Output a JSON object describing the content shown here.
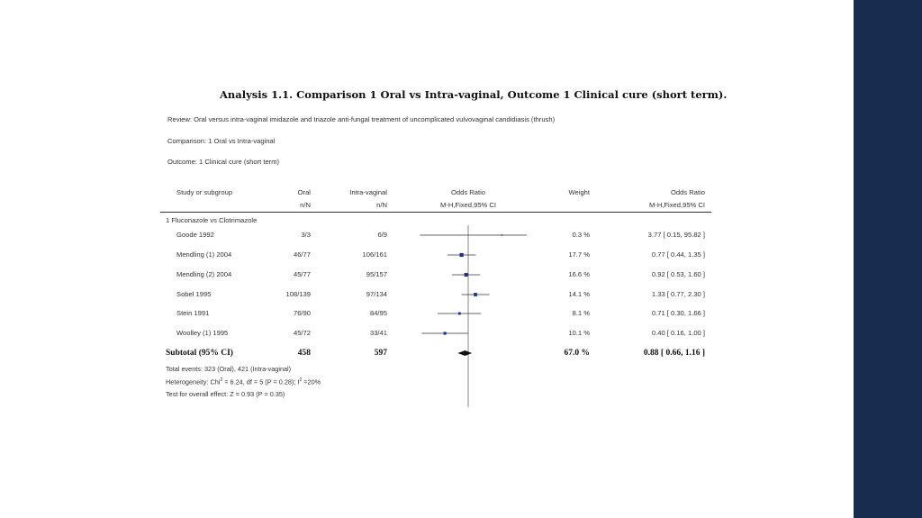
{
  "title": "Analysis 1.1.   Comparison 1 Oral vs Intra-vaginal, Outcome 1 Clinical cure (short term).",
  "review": "Review:   Oral versus intra-vaginal imidazole and triazole anti-fungal treatment of uncomplicated vulvovaginal candidiasis (thrush)",
  "comparison": "Comparison:   1 Oral vs Intra-vaginal",
  "outcome": "Outcome:   1 Clinical cure (short term)",
  "headers": {
    "study": "Study or subgroup",
    "oral": "Oral",
    "oral_sub": "n/N",
    "iv": "Intra-vaginal",
    "iv_sub": "n/N",
    "or_plot": "Odds Ratio",
    "or_plot_sub": "M-H,Fixed,95% CI",
    "weight": "Weight",
    "or_text": "Odds Ratio",
    "or_text_sub": "M-H,Fixed,95% CI"
  },
  "subgroup_label": "1 Fluconazole vs Clotrimazole",
  "chart_data": {
    "type": "forest",
    "null_value": 1,
    "scale": "log",
    "xlim": [
      0.1,
      10
    ],
    "studies": [
      {
        "name": "Goode 1992",
        "oral": "3/3",
        "iv": "6/9",
        "weight": "0.3 %",
        "ci_text": "3.77 [ 0.15, 95.82 ]",
        "or": 3.77,
        "lo": 0.15,
        "hi": 95.82,
        "w": 0.3
      },
      {
        "name": "Mendling (1) 2004",
        "oral": "46/77",
        "iv": "106/161",
        "weight": "17.7 %",
        "ci_text": "0.77 [ 0.44, 1.35 ]",
        "or": 0.77,
        "lo": 0.44,
        "hi": 1.35,
        "w": 17.7
      },
      {
        "name": "Mendling (2) 2004",
        "oral": "45/77",
        "iv": "95/157",
        "weight": "16.6 %",
        "ci_text": "0.92 [ 0.53, 1.60 ]",
        "or": 0.92,
        "lo": 0.53,
        "hi": 1.6,
        "w": 16.6
      },
      {
        "name": "Sobel 1995",
        "oral": "108/139",
        "iv": "97/134",
        "weight": "14.1 %",
        "ci_text": "1.33 [ 0.77, 2.30 ]",
        "or": 1.33,
        "lo": 0.77,
        "hi": 2.3,
        "w": 14.1
      },
      {
        "name": "Stein 1991",
        "oral": "76/90",
        "iv": "84/95",
        "weight": "8.1 %",
        "ci_text": "0.71 [ 0.30, 1.66 ]",
        "or": 0.71,
        "lo": 0.3,
        "hi": 1.66,
        "w": 8.1
      },
      {
        "name": "Woolley (1) 1995",
        "oral": "45/72",
        "iv": "33/41",
        "weight": "10.1 %",
        "ci_text": "0.40 [ 0.16, 1.00 ]",
        "or": 0.4,
        "lo": 0.16,
        "hi": 1.0,
        "w": 10.1
      }
    ],
    "subtotal": {
      "name": "Subtotal (95% CI)",
      "oral": "458",
      "iv": "597",
      "weight": "67.0 %",
      "ci_text": "0.88 [ 0.66, 1.16 ]",
      "or": 0.88,
      "lo": 0.66,
      "hi": 1.16
    }
  },
  "footnotes": {
    "events": "Total events: 323 (Oral), 421 (Intra-vaginal)",
    "heterogeneity_prefix": "Heterogeneity: Chi",
    "heterogeneity_mid": " = 6.24, df = 5 (P = 0.28); I",
    "heterogeneity_suffix": " =20%",
    "sup": "2",
    "overall": "Test for overall effect: Z = 0.93 (P = 0.35)"
  },
  "colors": {
    "marker": "#1f2f8a",
    "line": "#333333",
    "sidebar": "#162d4f"
  }
}
